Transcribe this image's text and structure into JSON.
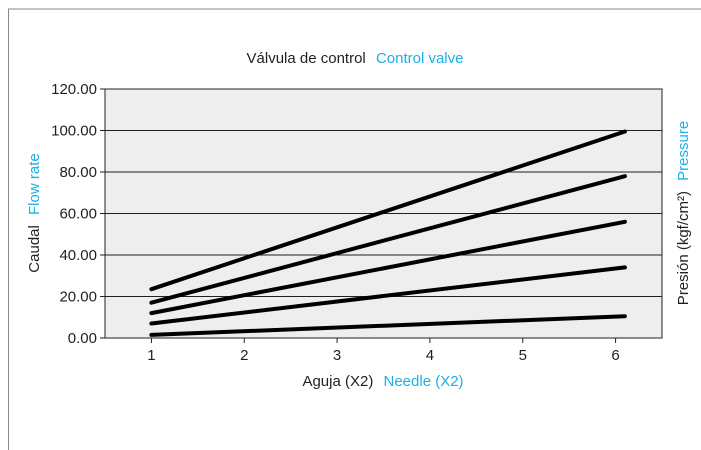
{
  "chart_data": {
    "type": "line",
    "title": "Válvula de control",
    "title_en": "Control valve",
    "xlabel": "Aguja (X2)",
    "xlabel_en": "Needle (X2)",
    "ylabel": "Caudal",
    "ylabel_en": "Flow rate",
    "y2label": "Presión (kgf/cm²)",
    "y2label_en": "Pressure",
    "x_ticks": [
      "1",
      "2",
      "3",
      "4",
      "5",
      "6"
    ],
    "y_ticks": [
      "0.00",
      "20.00",
      "40.00",
      "60.00",
      "80.00",
      "100.00",
      "120.00"
    ],
    "xlim": [
      0.5,
      6.5
    ],
    "ylim": [
      0,
      120
    ],
    "grid": true,
    "x": [
      1,
      6.1
    ],
    "series": [
      {
        "values": [
          23.5,
          99.5
        ]
      },
      {
        "values": [
          17,
          78
        ]
      },
      {
        "values": [
          12,
          56
        ]
      },
      {
        "values": [
          7,
          34
        ]
      },
      {
        "values": [
          1.5,
          10.5
        ]
      }
    ],
    "colors": {
      "accent": "#1ab0e8",
      "plot_bg": "#eeeeee",
      "line": "#000000",
      "text": "#231f20",
      "grid": "#231f20"
    }
  }
}
